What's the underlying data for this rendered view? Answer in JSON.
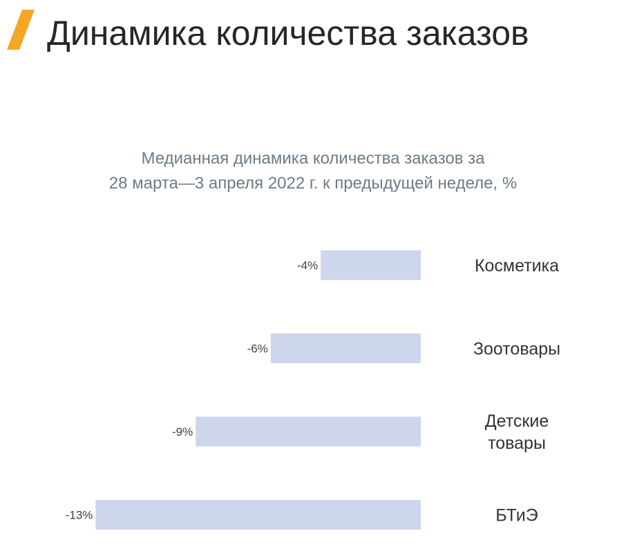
{
  "slide": {
    "title": "Динамика количества заказов",
    "accent_color": "#f5a623"
  },
  "chart_data": {
    "type": "bar",
    "orientation": "horizontal",
    "title_lines": [
      "Медианная динамика количества заказов за",
      "28 марта—3 апреля 2022 г. к предыдущей неделе, %"
    ],
    "categories": [
      [
        "Косметика"
      ],
      [
        "Зоотовары"
      ],
      [
        "Детские",
        "товары"
      ],
      [
        "БТиЭ"
      ]
    ],
    "values": [
      -4,
      -6,
      -9,
      -13
    ],
    "value_labels": [
      "-4%",
      "-6%",
      "-9%",
      "-13%"
    ],
    "unit": "%",
    "xlim": [
      -13,
      0
    ],
    "bar_color": "#ced6ec",
    "grid": false,
    "legend": "none"
  }
}
